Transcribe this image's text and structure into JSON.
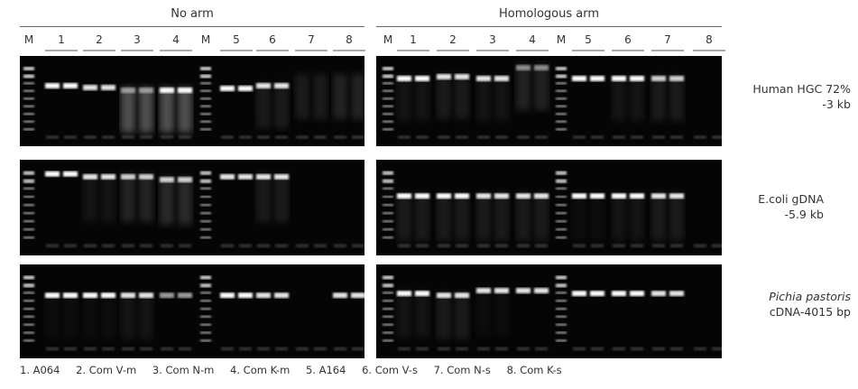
{
  "groups": {
    "left": "No arm",
    "right": "Homologous arm"
  },
  "lanes": [
    "M",
    "1",
    "2",
    "3",
    "4",
    "M",
    "5",
    "6",
    "7",
    "8"
  ],
  "row_labels": [
    {
      "line1": "Human HGC 72%",
      "line2": "-3 kb"
    },
    {
      "line1": "E.coli gDNA",
      "line2": "-5.9 kb"
    },
    {
      "line1": "Pichia pastoris",
      "line2": "cDNA-4015 bp"
    }
  ],
  "legend": [
    "1. A064",
    "2. Com V-m",
    "3. Com N-m",
    "4. Com K-m",
    "5. A164",
    "6. Com V-s",
    "7. Com N-s",
    "8. Com K-s"
  ]
}
